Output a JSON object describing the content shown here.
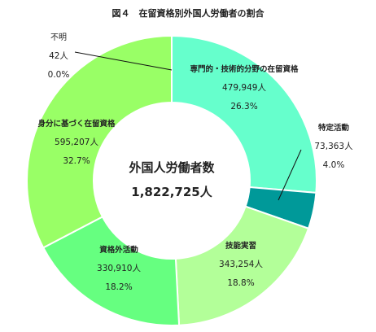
{
  "chart_data": {
    "type": "pie",
    "title": "図４　在留資格別外国人労働者の割合",
    "center_title": "外国人労働者数",
    "center_value": "1,822,725人",
    "slices": [
      {
        "name": "専門的・技術的分野の在留資格",
        "value": 479949,
        "value_label": "479,949人",
        "percent_label": "26.3%",
        "color": "#66ffcc"
      },
      {
        "name": "特定活動",
        "value": 73363,
        "value_label": "73,363人",
        "percent_label": "4.0%",
        "color": "#009999"
      },
      {
        "name": "技能実習",
        "value": 343254,
        "value_label": "343,254人",
        "percent_label": "18.8%",
        "color": "#b3ff99"
      },
      {
        "name": "資格外活動",
        "value": 330910,
        "value_label": "330,910人",
        "percent_label": "18.2%",
        "color": "#66ff80"
      },
      {
        "name": "身分に基づく在留資格",
        "value": 595207,
        "value_label": "595,207人",
        "percent_label": "32.7%",
        "color": "#99ff66"
      },
      {
        "name": "不明",
        "value": 42,
        "value_label": "42人",
        "percent_label": "0.0%",
        "color": "#99ff66"
      }
    ]
  }
}
